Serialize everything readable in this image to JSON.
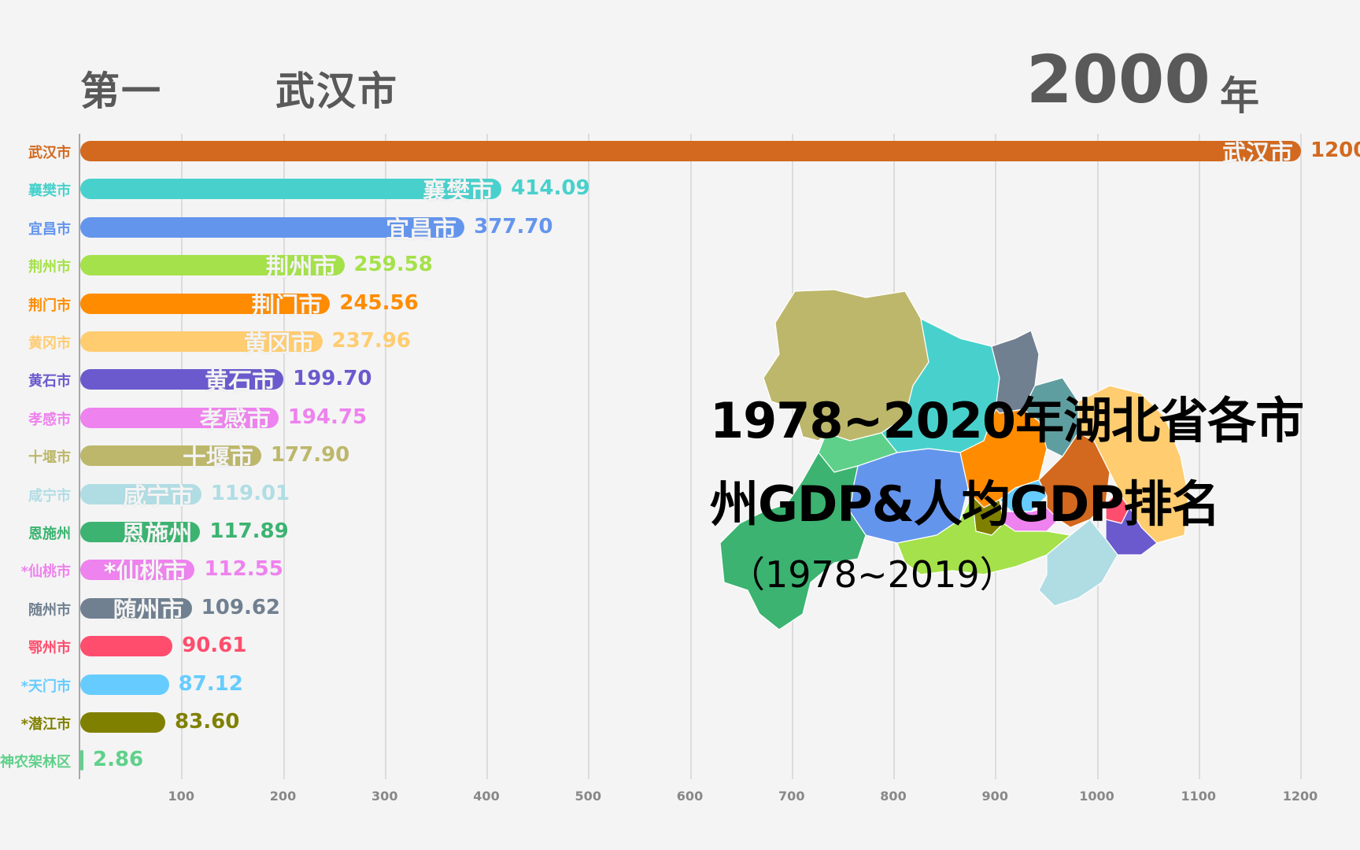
{
  "header": {
    "rank_label": "第一",
    "leader_name": "武汉市",
    "year": "2000",
    "year_unit": "年"
  },
  "overlay_title": {
    "line1": "1978~2020年湖北省各市",
    "line2": "州GDP&人均GDP排名",
    "subtitle": "（1978~2019）"
  },
  "axis": {
    "ticks": [
      "100",
      "200",
      "300",
      "400",
      "500",
      "600",
      "700",
      "800",
      "900",
      "1000",
      "1100",
      "1200"
    ]
  },
  "rows": [
    {
      "name": "武汉市",
      "inner": "武汉市",
      "value": "1200.",
      "color": "#d2691e"
    },
    {
      "name": "襄樊市",
      "inner": "襄樊市",
      "value": "414.09",
      "color": "#48d1cc"
    },
    {
      "name": "宜昌市",
      "inner": "宜昌市",
      "value": "377.70",
      "color": "#6495ed"
    },
    {
      "name": "荆州市",
      "inner": "荆州市",
      "value": "259.58",
      "color": "#a5e14a"
    },
    {
      "name": "荆门市",
      "inner": "荆门市",
      "value": "245.56",
      "color": "#ff8c00"
    },
    {
      "name": "黄冈市",
      "inner": "黄冈市",
      "value": "237.96",
      "color": "#ffcc70"
    },
    {
      "name": "黄石市",
      "inner": "黄石市",
      "value": "199.70",
      "color": "#6a5acd"
    },
    {
      "name": "孝感市",
      "inner": "孝感市",
      "value": "194.75",
      "color": "#ee82ee"
    },
    {
      "name": "十堰市",
      "inner": "十堰市",
      "value": "177.90",
      "color": "#bdb76b"
    },
    {
      "name": "咸宁市",
      "inner": "咸宁市",
      "value": "119.01",
      "color": "#b0dde4"
    },
    {
      "name": "恩施州",
      "inner": "恩施州",
      "value": "117.89",
      "color": "#3cb371"
    },
    {
      "name": "*仙桃市",
      "inner": "*仙桃市",
      "value": "112.55",
      "color": "#ee82ee"
    },
    {
      "name": "随州市",
      "inner": "随州市",
      "value": "109.62",
      "color": "#708090"
    },
    {
      "name": "鄂州市",
      "inner": "",
      "value": "90.61",
      "color": "#ff4d6d"
    },
    {
      "name": "*天门市",
      "inner": "",
      "value": "87.12",
      "color": "#66ccff"
    },
    {
      "name": "*潜江市",
      "inner": "",
      "value": "83.60",
      "color": "#808000"
    },
    {
      "name": "神农架林区",
      "inner": "",
      "value": "2.86",
      "color": "#5fd08a"
    }
  ],
  "chart_data": {
    "type": "bar",
    "orientation": "horizontal",
    "title": "1978~2020年湖北省各市州GDP&人均GDP排名",
    "subtitle": "（1978~2019）",
    "frame_year": 2000,
    "leader": "武汉市",
    "categories": [
      "武汉市",
      "襄樊市",
      "宜昌市",
      "荆州市",
      "荆门市",
      "黄冈市",
      "黄石市",
      "孝感市",
      "十堰市",
      "咸宁市",
      "恩施州",
      "*仙桃市",
      "随州市",
      "鄂州市",
      "*天门市",
      "*潜江市",
      "神农架林区"
    ],
    "values": [
      1200.0,
      414.09,
      377.7,
      259.58,
      245.56,
      237.96,
      199.7,
      194.75,
      177.9,
      119.01,
      117.89,
      112.55,
      109.62,
      90.61,
      87.12,
      83.6,
      2.86
    ],
    "colors": [
      "#d2691e",
      "#48d1cc",
      "#6495ed",
      "#a5e14a",
      "#ff8c00",
      "#ffcc70",
      "#6a5acd",
      "#ee82ee",
      "#bdb76b",
      "#b0dde4",
      "#3cb371",
      "#ee82ee",
      "#708090",
      "#ff4d6d",
      "#66ccff",
      "#808000",
      "#5fd08a"
    ],
    "xlabel": "",
    "ylabel": "",
    "xlim": [
      0,
      1200
    ],
    "xticks": [
      100,
      200,
      300,
      400,
      500,
      600,
      700,
      800,
      900,
      1000,
      1100,
      1200
    ],
    "grid": true,
    "legend": "none"
  }
}
